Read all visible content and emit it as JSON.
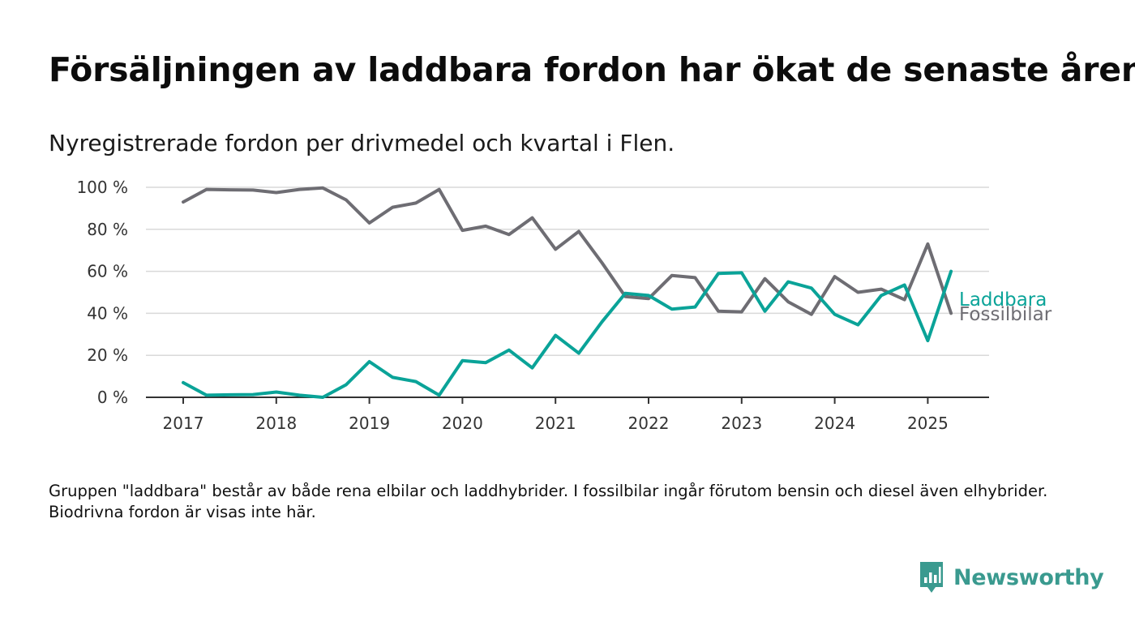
{
  "header": {
    "title": "Försäljningen av laddbara fordon har ökat de senaste åren",
    "subtitle": "Nyregistrerade fordon per drivmedel och kvartal i Flen."
  },
  "footer": {
    "note": "Gruppen \"laddbara\" består av både rena elbilar och laddhybrider. I fossilbilar ingår förutom bensin och diesel även elhybrider. Biodrivna fordon är visas inte här.",
    "brand": "Newsworthy"
  },
  "colors": {
    "laddbara": "#0aa398",
    "fossil": "#6e6d73",
    "grid": "#d9d9d9",
    "axis": "#333333",
    "brand": "#3a9a8f"
  },
  "chart_data": {
    "type": "line",
    "x_unit": "quarter",
    "x": [
      "2017-Q1",
      "2017-Q2",
      "2017-Q3",
      "2017-Q4",
      "2018-Q1",
      "2018-Q2",
      "2018-Q3",
      "2018-Q4",
      "2019-Q1",
      "2019-Q2",
      "2019-Q3",
      "2019-Q4",
      "2020-Q1",
      "2020-Q2",
      "2020-Q3",
      "2020-Q4",
      "2021-Q1",
      "2021-Q2",
      "2021-Q3",
      "2021-Q4",
      "2022-Q1",
      "2022-Q2",
      "2022-Q3",
      "2022-Q4",
      "2023-Q1",
      "2023-Q2",
      "2023-Q3",
      "2023-Q4",
      "2024-Q1",
      "2024-Q2",
      "2024-Q3",
      "2024-Q4",
      "2025-Q1",
      "2025-Q2"
    ],
    "x_ticks": [
      "2017",
      "2018",
      "2019",
      "2020",
      "2021",
      "2022",
      "2023",
      "2024",
      "2025"
    ],
    "y_ticks": [
      "0 %",
      "20 %",
      "40 %",
      "60 %",
      "80 %",
      "100 %"
    ],
    "ylim": [
      0,
      100
    ],
    "grid": true,
    "series": [
      {
        "name": "Fossilbilar",
        "color_key": "fossil",
        "values": [
          93,
          99,
          98.8,
          98.7,
          97.5,
          99,
          99.7,
          94,
          83,
          90.5,
          92.5,
          99,
          79.5,
          81.5,
          77.5,
          85.5,
          70.5,
          79,
          64,
          48,
          47,
          58,
          57,
          41,
          40.7,
          56.5,
          45.5,
          39.5,
          57.5,
          50,
          51.5,
          46.5,
          73,
          40
        ]
      },
      {
        "name": "Laddbara",
        "color_key": "laddbara",
        "values": [
          7,
          1,
          1.2,
          1.3,
          2.5,
          1,
          0,
          6,
          17,
          9.5,
          7.5,
          1,
          17.5,
          16.5,
          22.5,
          14,
          29.5,
          21,
          36,
          49.5,
          48.5,
          42,
          43,
          59,
          59.3,
          41,
          55,
          52,
          39.5,
          34.5,
          48.5,
          53.5,
          27,
          60
        ]
      }
    ]
  }
}
